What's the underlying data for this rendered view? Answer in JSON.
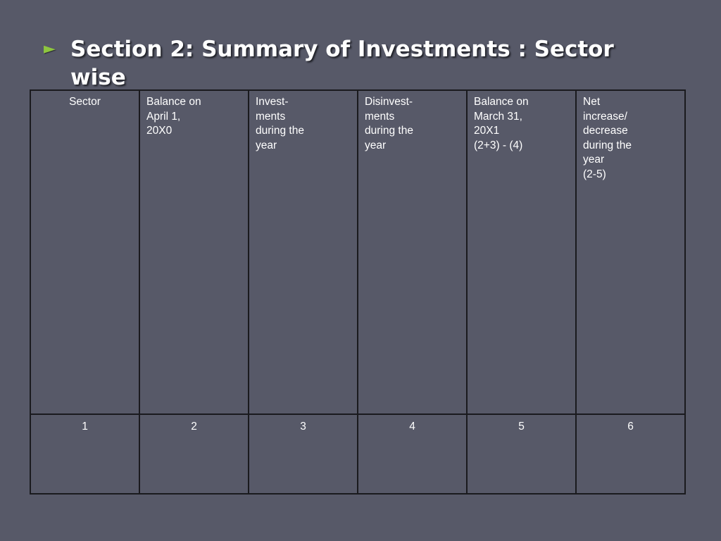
{
  "slide": {
    "bullet_glyph": "►",
    "bullet_color": "#8ec63f",
    "background_color": "#575968",
    "title": "Section 2: Summary of Investments : Sector wise"
  },
  "table": {
    "headers": [
      [
        "Sector"
      ],
      [
        "Balance on",
        "April 1,",
        "20X0"
      ],
      [
        "Invest-",
        "ments",
        "during the",
        "year"
      ],
      [
        "Disinvest-",
        "ments",
        "during the",
        "year"
      ],
      [
        "Balance on",
        "March 31,",
        "20X1",
        "(2+3) - (4)"
      ],
      [
        "Net",
        "increase/",
        "decrease",
        "during the",
        "year",
        "(2-5)"
      ]
    ],
    "column_numbers": [
      "1",
      "2",
      "3",
      "4",
      "5",
      "6"
    ]
  }
}
